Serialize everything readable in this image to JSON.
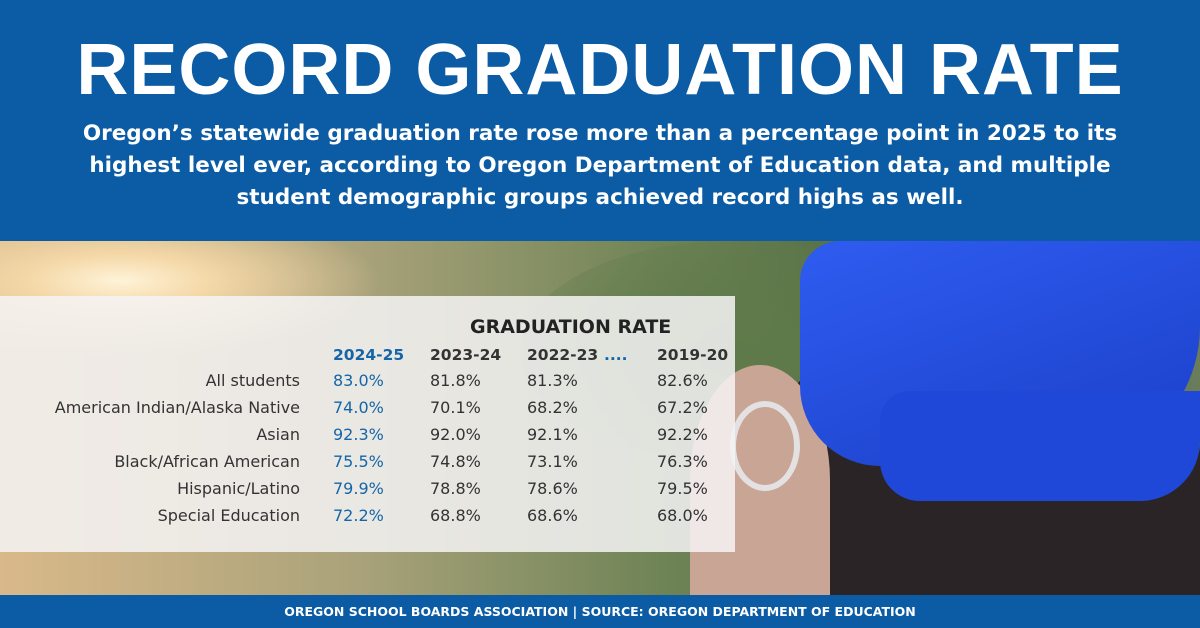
{
  "header": {
    "title": "RECORD GRADUATION RATE",
    "subtitle": "Oregon’s statewide graduation rate rose more than a percentage point in 2025 to its highest level ever, according to Oregon Department of Education data, and multiple student demographic groups achieved record highs as well."
  },
  "colors": {
    "brand_blue": "#0b5ca5",
    "highlight_blue": "#1565a8",
    "cap_blue": "#1a47d6"
  },
  "chart_data": {
    "type": "table",
    "title": "GRADUATION RATE",
    "columns": [
      "2024-25",
      "2023-24",
      "2022-23",
      "....",
      "2019-20"
    ],
    "rows": [
      {
        "label": "All students",
        "values": [
          "83.0%",
          "81.8%",
          "81.3%",
          "82.6%"
        ]
      },
      {
        "label": "American Indian/Alaska Native",
        "values": [
          "74.0%",
          "70.1%",
          "68.2%",
          "67.2%"
        ]
      },
      {
        "label": "Asian",
        "values": [
          "92.3%",
          "92.0%",
          "92.1%",
          "92.2%"
        ]
      },
      {
        "label": "Black/African American",
        "values": [
          "75.5%",
          "74.8%",
          "73.1%",
          "76.3%"
        ]
      },
      {
        "label": "Hispanic/Latino",
        "values": [
          "79.9%",
          "78.8%",
          "78.6%",
          "79.5%"
        ]
      },
      {
        "label": "Special Education",
        "values": [
          "72.2%",
          "68.8%",
          "68.6%",
          "68.0%"
        ]
      }
    ]
  },
  "footer": {
    "text": "OREGON SCHOOL BOARDS ASSOCIATION | SOURCE: OREGON DEPARTMENT OF EDUCATION"
  }
}
